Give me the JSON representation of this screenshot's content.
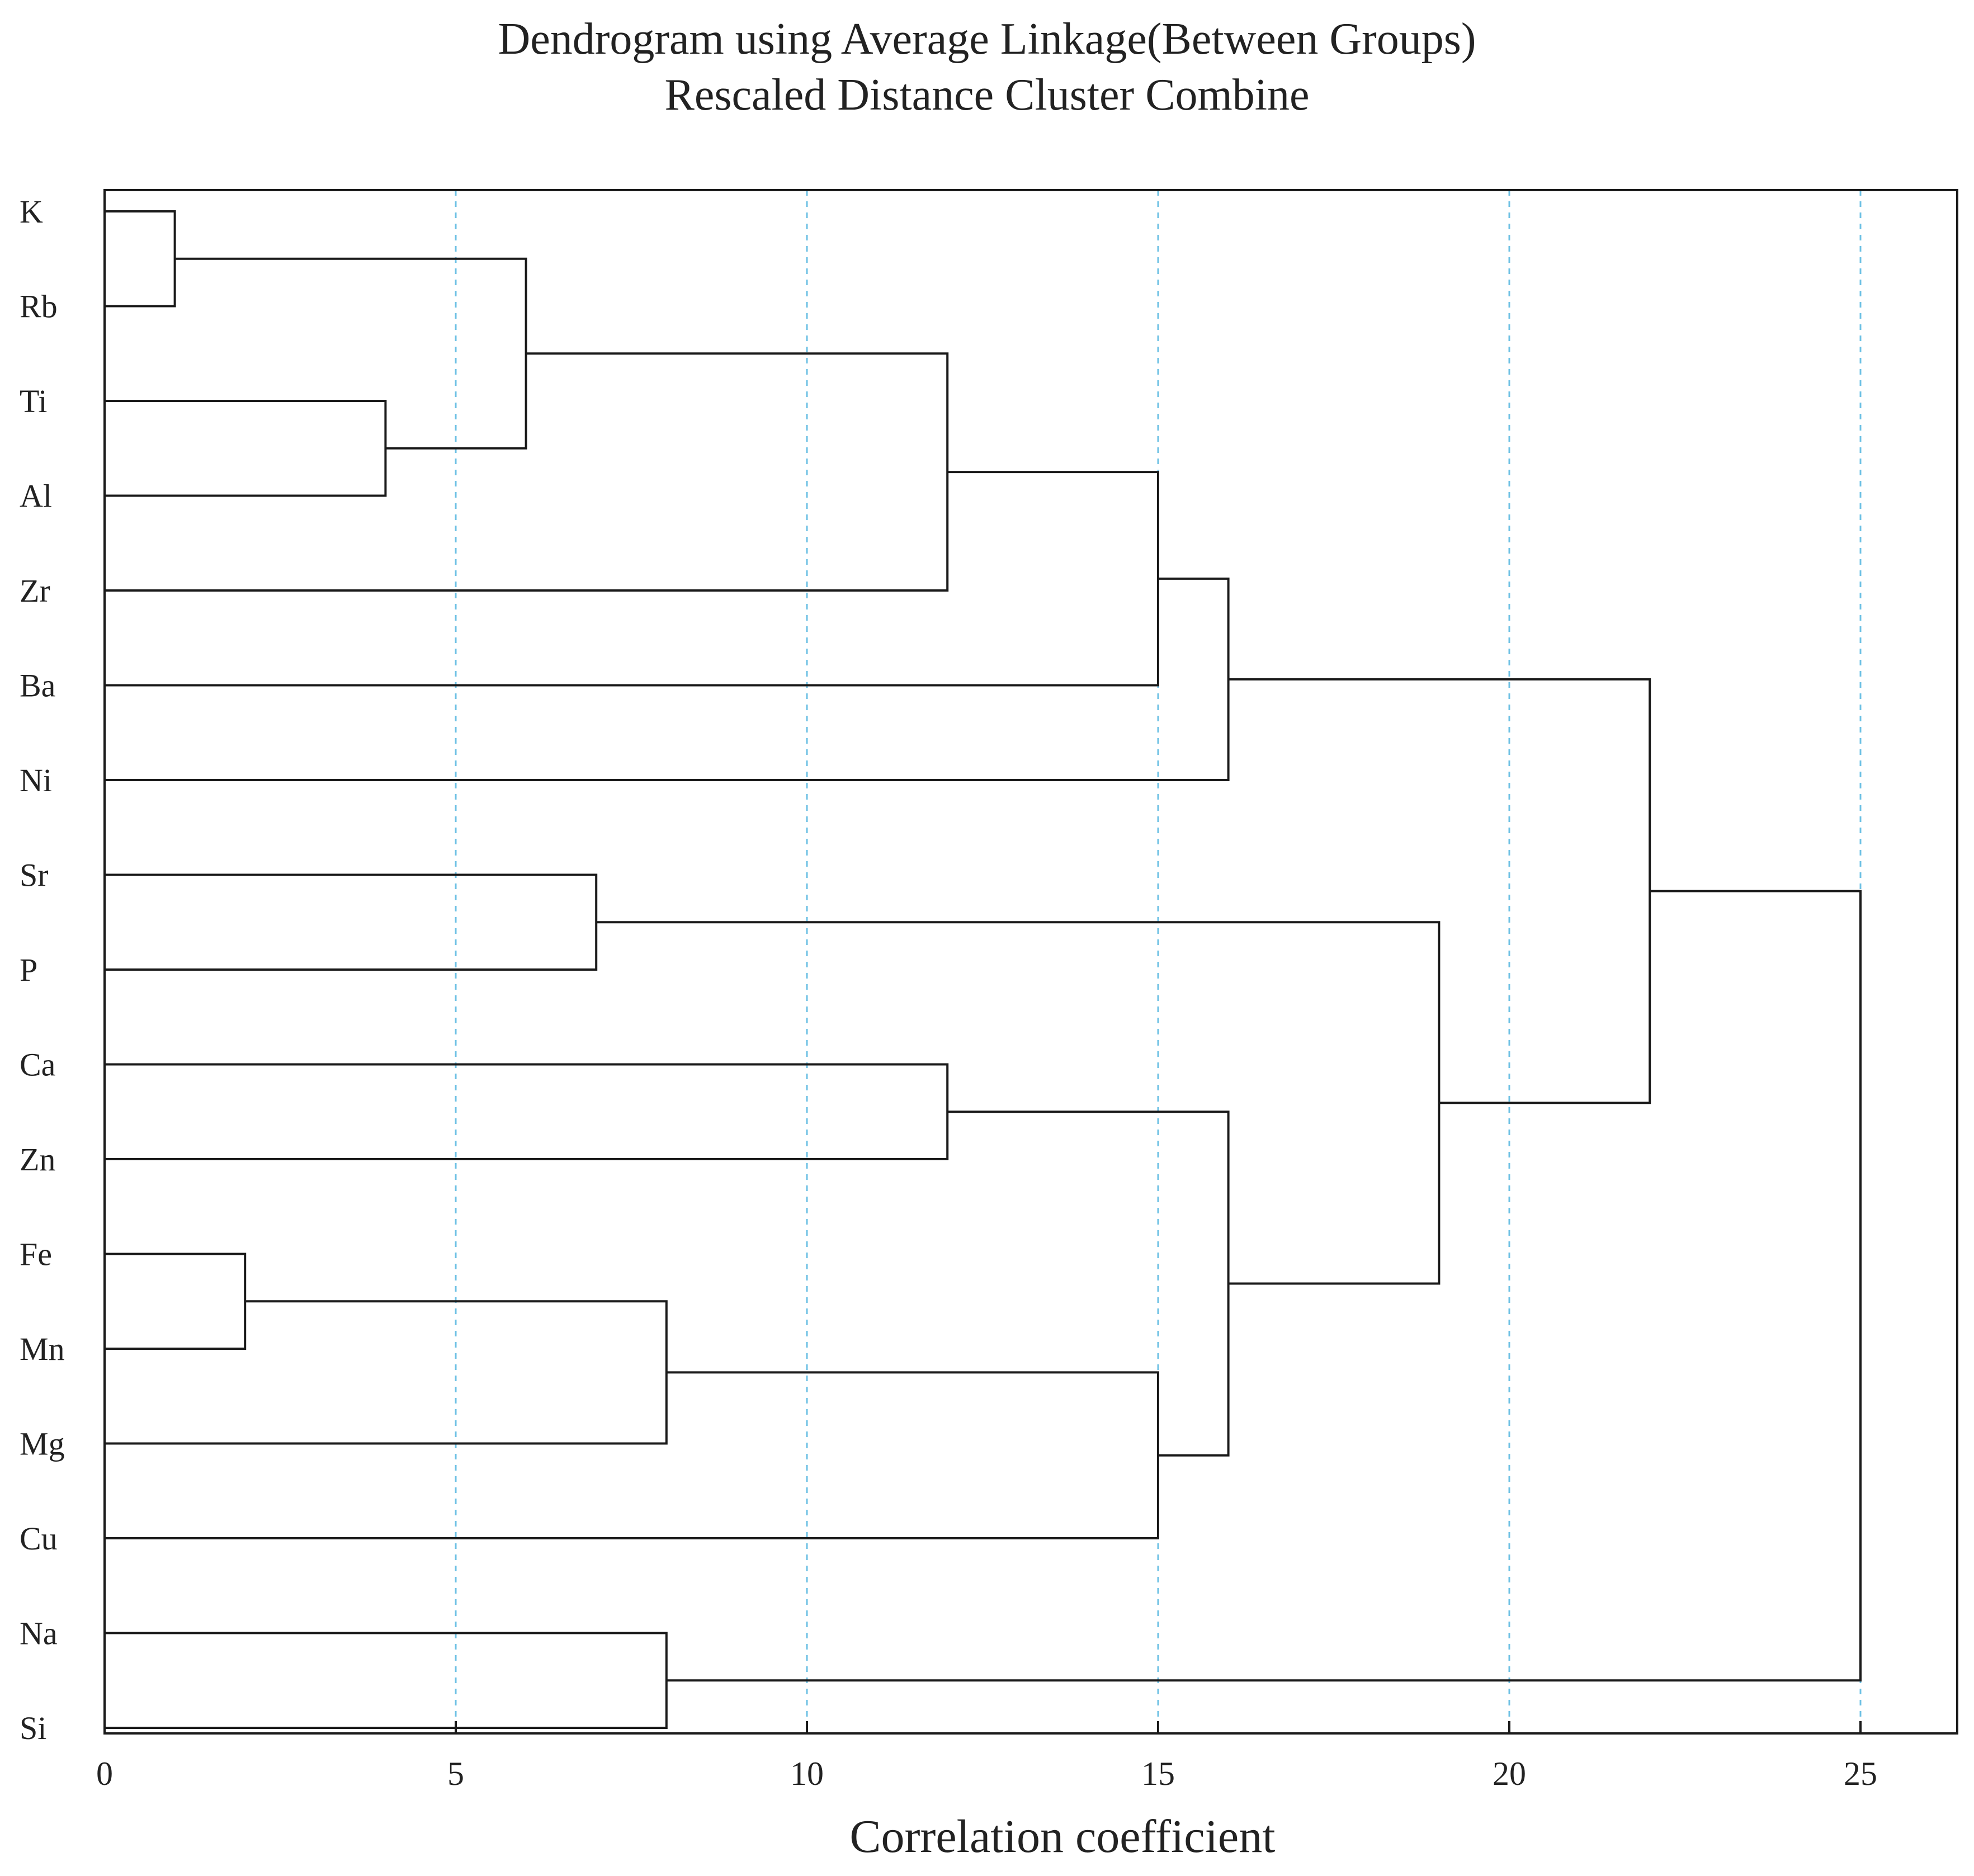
{
  "chart_data": {
    "type": "dendrogram",
    "title": "Dendrogram using Average Linkage(Between Groups)",
    "subtitle": "Rescaled Distance Cluster Combine",
    "xlabel": "Correlation coefficient",
    "ylabel": "",
    "xlim": [
      0,
      26.3
    ],
    "x_ticks": [
      0,
      5,
      10,
      15,
      20,
      25
    ],
    "x_tick_labels": [
      "0",
      "5",
      "10",
      "15",
      "20",
      "25"
    ],
    "grid": "vertical dashed at ticks",
    "leaves": [
      "K",
      "Rb",
      "Ti",
      "Al",
      "Zr",
      "Ba",
      "Ni",
      "Sr",
      "P",
      "Ca",
      "Zn",
      "Fe",
      "Mn",
      "Mg",
      "Cu",
      "Na",
      "Si"
    ],
    "merges": [
      {
        "id": "c1",
        "children": [
          "K",
          "Rb"
        ],
        "distance": 1
      },
      {
        "id": "c2",
        "children": [
          "Fe",
          "Mn"
        ],
        "distance": 2
      },
      {
        "id": "c3",
        "children": [
          "Ti",
          "Al"
        ],
        "distance": 4
      },
      {
        "id": "c4",
        "children": [
          "c1",
          "c3"
        ],
        "distance": 6
      },
      {
        "id": "c5",
        "children": [
          "Sr",
          "P"
        ],
        "distance": 7
      },
      {
        "id": "c6",
        "children": [
          "c2",
          "Mg"
        ],
        "distance": 8
      },
      {
        "id": "c7",
        "children": [
          "Na",
          "Si"
        ],
        "distance": 8
      },
      {
        "id": "c8",
        "children": [
          "c4",
          "Zr"
        ],
        "distance": 12
      },
      {
        "id": "c9",
        "children": [
          "Ca",
          "Zn"
        ],
        "distance": 12
      },
      {
        "id": "c10",
        "children": [
          "c8",
          "Ba"
        ],
        "distance": 15
      },
      {
        "id": "c11",
        "children": [
          "c6",
          "Cu"
        ],
        "distance": 15
      },
      {
        "id": "c12",
        "children": [
          "c10",
          "Ni"
        ],
        "distance": 16
      },
      {
        "id": "c13",
        "children": [
          "c9",
          "c11"
        ],
        "distance": 16
      },
      {
        "id": "c14",
        "children": [
          "c5",
          "c13"
        ],
        "distance": 19
      },
      {
        "id": "c15",
        "children": [
          "c12",
          "c14"
        ],
        "distance": 22
      },
      {
        "id": "c16",
        "children": [
          "c15",
          "c7"
        ],
        "distance": 25
      }
    ],
    "colors": {
      "branch": "#1a1a1a",
      "grid": "#6ec1e4",
      "frame": "#1a1a1a",
      "text": "#222222"
    }
  }
}
